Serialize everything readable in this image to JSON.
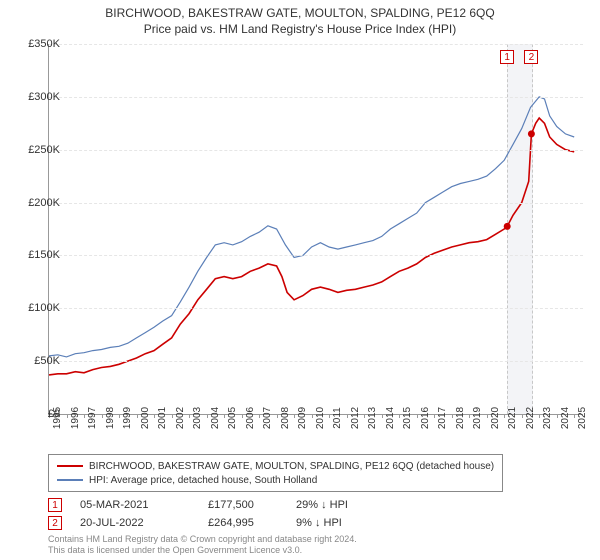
{
  "title_line1": "BIRCHWOOD, BAKESTRAW GATE, MOULTON, SPALDING, PE12 6QQ",
  "title_line2": "Price paid vs. HM Land Registry's House Price Index (HPI)",
  "chart": {
    "type": "line",
    "background_color": "#ffffff",
    "grid_color": "#e6e6e6",
    "axis_color": "#999999",
    "label_fontsize": 11,
    "xlim": [
      1995,
      2025.5
    ],
    "ylim": [
      0,
      350000
    ],
    "yticks": [
      0,
      50000,
      100000,
      150000,
      200000,
      250000,
      300000,
      350000
    ],
    "ytick_labels": [
      "£0",
      "£50K",
      "£100K",
      "£150K",
      "£200K",
      "£250K",
      "£300K",
      "£350K"
    ],
    "xticks": [
      1995,
      1996,
      1997,
      1998,
      1999,
      2000,
      2001,
      2002,
      2003,
      2004,
      2005,
      2006,
      2007,
      2008,
      2009,
      2010,
      2011,
      2012,
      2013,
      2014,
      2015,
      2016,
      2017,
      2018,
      2019,
      2020,
      2021,
      2022,
      2023,
      2024,
      2025
    ],
    "series": [
      {
        "name": "BIRCHWOOD, BAKESTRAW GATE, MOULTON, SPALDING, PE12 6QQ (detached house)",
        "color": "#cc0000",
        "line_width": 1.6,
        "data": [
          [
            1995,
            37000
          ],
          [
            1995.5,
            38000
          ],
          [
            1996,
            38000
          ],
          [
            1996.5,
            40000
          ],
          [
            1997,
            39000
          ],
          [
            1997.5,
            42000
          ],
          [
            1998,
            44000
          ],
          [
            1998.5,
            45000
          ],
          [
            1999,
            47000
          ],
          [
            1999.5,
            50000
          ],
          [
            2000,
            53000
          ],
          [
            2000.5,
            57000
          ],
          [
            2001,
            60000
          ],
          [
            2001.5,
            66000
          ],
          [
            2002,
            72000
          ],
          [
            2002.5,
            85000
          ],
          [
            2003,
            95000
          ],
          [
            2003.5,
            108000
          ],
          [
            2004,
            118000
          ],
          [
            2004.5,
            128000
          ],
          [
            2005,
            130000
          ],
          [
            2005.5,
            128000
          ],
          [
            2006,
            130000
          ],
          [
            2006.5,
            135000
          ],
          [
            2007,
            138000
          ],
          [
            2007.5,
            142000
          ],
          [
            2008,
            140000
          ],
          [
            2008.3,
            130000
          ],
          [
            2008.6,
            115000
          ],
          [
            2009,
            108000
          ],
          [
            2009.5,
            112000
          ],
          [
            2010,
            118000
          ],
          [
            2010.5,
            120000
          ],
          [
            2011,
            118000
          ],
          [
            2011.5,
            115000
          ],
          [
            2012,
            117000
          ],
          [
            2012.5,
            118000
          ],
          [
            2013,
            120000
          ],
          [
            2013.5,
            122000
          ],
          [
            2014,
            125000
          ],
          [
            2014.5,
            130000
          ],
          [
            2015,
            135000
          ],
          [
            2015.5,
            138000
          ],
          [
            2016,
            142000
          ],
          [
            2016.5,
            148000
          ],
          [
            2017,
            152000
          ],
          [
            2017.5,
            155000
          ],
          [
            2018,
            158000
          ],
          [
            2018.5,
            160000
          ],
          [
            2019,
            162000
          ],
          [
            2019.5,
            163000
          ],
          [
            2020,
            165000
          ],
          [
            2020.5,
            170000
          ],
          [
            2021,
            175000
          ],
          [
            2021.17,
            177500
          ],
          [
            2021.5,
            188000
          ],
          [
            2022,
            200000
          ],
          [
            2022.4,
            220000
          ],
          [
            2022.55,
            264995
          ],
          [
            2022.8,
            275000
          ],
          [
            2023,
            280000
          ],
          [
            2023.3,
            275000
          ],
          [
            2023.6,
            262000
          ],
          [
            2024,
            255000
          ],
          [
            2024.5,
            250000
          ],
          [
            2025,
            248000
          ]
        ],
        "sale_points": [
          {
            "x": 2021.17,
            "y": 177500
          },
          {
            "x": 2022.55,
            "y": 264995
          }
        ]
      },
      {
        "name": "HPI: Average price, detached house, South Holland",
        "color": "#5b7fb8",
        "line_width": 1.2,
        "data": [
          [
            1995,
            55000
          ],
          [
            1995.5,
            56000
          ],
          [
            1996,
            54000
          ],
          [
            1996.5,
            57000
          ],
          [
            1997,
            58000
          ],
          [
            1997.5,
            60000
          ],
          [
            1998,
            61000
          ],
          [
            1998.5,
            63000
          ],
          [
            1999,
            64000
          ],
          [
            1999.5,
            67000
          ],
          [
            2000,
            72000
          ],
          [
            2000.5,
            77000
          ],
          [
            2001,
            82000
          ],
          [
            2001.5,
            88000
          ],
          [
            2002,
            93000
          ],
          [
            2002.5,
            106000
          ],
          [
            2003,
            120000
          ],
          [
            2003.5,
            135000
          ],
          [
            2004,
            148000
          ],
          [
            2004.5,
            160000
          ],
          [
            2005,
            162000
          ],
          [
            2005.5,
            160000
          ],
          [
            2006,
            163000
          ],
          [
            2006.5,
            168000
          ],
          [
            2007,
            172000
          ],
          [
            2007.5,
            178000
          ],
          [
            2008,
            175000
          ],
          [
            2008.5,
            160000
          ],
          [
            2009,
            148000
          ],
          [
            2009.5,
            150000
          ],
          [
            2010,
            158000
          ],
          [
            2010.5,
            162000
          ],
          [
            2011,
            158000
          ],
          [
            2011.5,
            156000
          ],
          [
            2012,
            158000
          ],
          [
            2012.5,
            160000
          ],
          [
            2013,
            162000
          ],
          [
            2013.5,
            164000
          ],
          [
            2014,
            168000
          ],
          [
            2014.5,
            175000
          ],
          [
            2015,
            180000
          ],
          [
            2015.5,
            185000
          ],
          [
            2016,
            190000
          ],
          [
            2016.5,
            200000
          ],
          [
            2017,
            205000
          ],
          [
            2017.5,
            210000
          ],
          [
            2018,
            215000
          ],
          [
            2018.5,
            218000
          ],
          [
            2019,
            220000
          ],
          [
            2019.5,
            222000
          ],
          [
            2020,
            225000
          ],
          [
            2020.5,
            232000
          ],
          [
            2021,
            240000
          ],
          [
            2021.5,
            255000
          ],
          [
            2022,
            270000
          ],
          [
            2022.5,
            290000
          ],
          [
            2023,
            300000
          ],
          [
            2023.3,
            298000
          ],
          [
            2023.6,
            282000
          ],
          [
            2024,
            272000
          ],
          [
            2024.5,
            265000
          ],
          [
            2025,
            262000
          ]
        ]
      }
    ],
    "markers": [
      {
        "id": 1,
        "x": 2021.17,
        "label_top_y": 60
      },
      {
        "id": 2,
        "x": 2022.55,
        "label_top_y": 60
      }
    ],
    "marker_band": {
      "x_from": 2021.17,
      "x_to": 2022.55,
      "color": "#eef0f5"
    }
  },
  "legend": {
    "items": [
      {
        "color": "#cc0000",
        "label": "BIRCHWOOD, BAKESTRAW GATE, MOULTON, SPALDING, PE12 6QQ (detached house)"
      },
      {
        "color": "#5b7fb8",
        "label": "HPI: Average price, detached house, South Holland"
      }
    ]
  },
  "sales": [
    {
      "marker": "1",
      "date": "05-MAR-2021",
      "price": "£177,500",
      "delta": "29% ↓ HPI"
    },
    {
      "marker": "2",
      "date": "20-JUL-2022",
      "price": "£264,995",
      "delta": "9% ↓ HPI"
    }
  ],
  "footer_line1": "Contains HM Land Registry data © Crown copyright and database right 2024.",
  "footer_line2": "This data is licensed under the Open Government Licence v3.0."
}
